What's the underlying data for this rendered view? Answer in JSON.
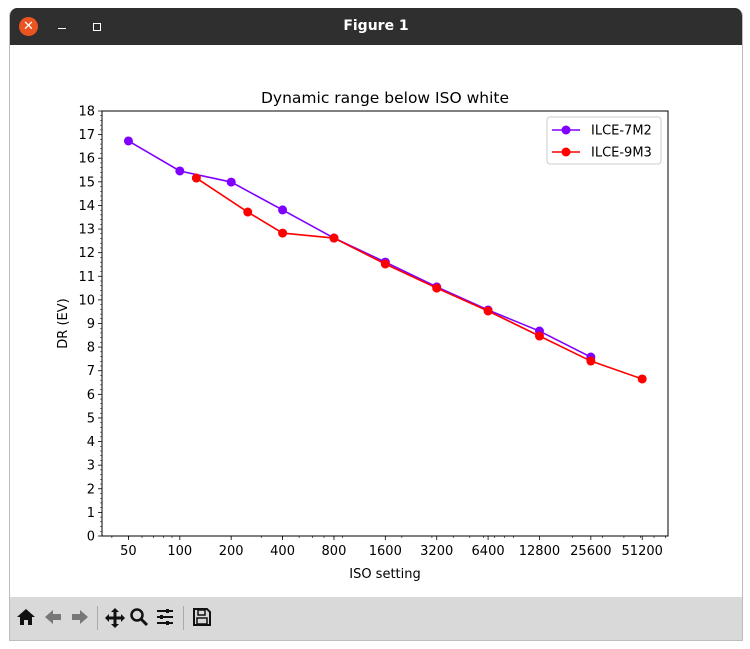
{
  "window": {
    "title": "Figure 1"
  },
  "toolbar": {
    "icons": [
      "home-icon",
      "back-icon",
      "forward-icon",
      "pan-icon",
      "zoom-icon",
      "configure-subplots-icon",
      "save-icon"
    ]
  },
  "chart_data": {
    "type": "line",
    "title": "Dynamic range below ISO white",
    "xlabel": "ISO setting",
    "ylabel": "DR (EV)",
    "xscale": "log2",
    "xlim": [
      35,
      72500
    ],
    "ylim": [
      0,
      18
    ],
    "xticks": [
      50,
      100,
      200,
      400,
      800,
      1600,
      3200,
      6400,
      12800,
      25600,
      51200
    ],
    "xtick_labels": [
      "50",
      "100",
      "200",
      "400",
      "800",
      "1600",
      "3200",
      "6400",
      "12800",
      "25600",
      "51200"
    ],
    "yticks": [
      0,
      1,
      2,
      3,
      4,
      5,
      6,
      7,
      8,
      9,
      10,
      11,
      12,
      13,
      14,
      15,
      16,
      17,
      18
    ],
    "ytick_labels": [
      "0",
      "1",
      "2",
      "3",
      "4",
      "5",
      "6",
      "7",
      "8",
      "9",
      "10",
      "11",
      "12",
      "13",
      "14",
      "15",
      "16",
      "17",
      "18"
    ],
    "grid": false,
    "legend": "top-right",
    "series": [
      {
        "name": "ILCE-7M2",
        "color": "#8000ff",
        "x": [
          50,
          100,
          200,
          400,
          800,
          1600,
          3200,
          6400,
          12800,
          25600
        ],
        "y": [
          16.73,
          15.46,
          14.99,
          13.81,
          12.62,
          11.6,
          10.55,
          9.57,
          8.68,
          7.58
        ]
      },
      {
        "name": "ILCE-9M3",
        "color": "#ff0000",
        "x": [
          125,
          250,
          400,
          800,
          1600,
          3200,
          6400,
          12800,
          25600,
          51200
        ],
        "y": [
          15.16,
          13.72,
          12.83,
          12.62,
          11.52,
          10.5,
          9.53,
          8.47,
          7.41,
          6.65
        ]
      }
    ]
  }
}
